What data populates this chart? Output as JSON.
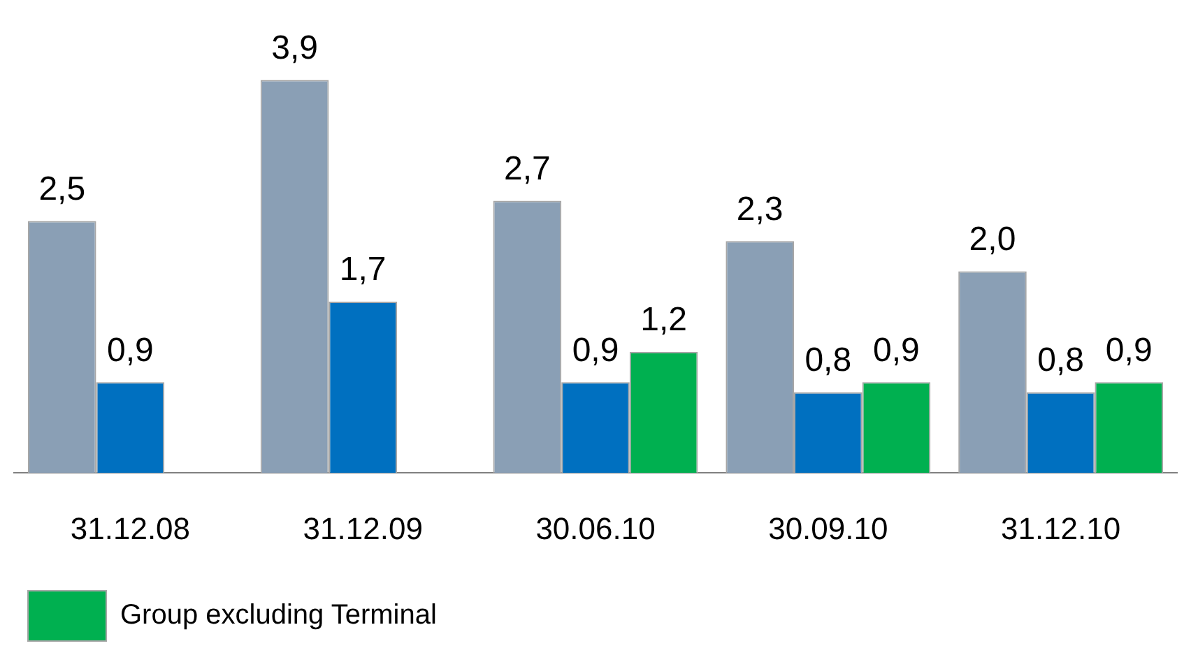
{
  "chart_data": {
    "type": "bar",
    "categories": [
      "31.12.08",
      "31.12.09",
      "30.06.10",
      "30.09.10",
      "31.12.10"
    ],
    "series": [
      {
        "color": "#8a9fb5",
        "values": [
          2.5,
          3.9,
          2.7,
          2.3,
          2.0
        ],
        "value_labels": [
          "2,5",
          "3,9",
          "2,7",
          "2,3",
          "2,0"
        ]
      },
      {
        "color": "#0070c0",
        "values": [
          0.9,
          1.7,
          0.9,
          0.8,
          0.8
        ],
        "value_labels": [
          "0,9",
          "1,7",
          "0,9",
          "0,8",
          "0,8"
        ]
      },
      {
        "name": "Group excluding Terminal",
        "color": "#00b050",
        "values": [
          null,
          null,
          1.2,
          0.9,
          0.9
        ],
        "value_labels": [
          null,
          null,
          "1,2",
          "0,9",
          "0,9"
        ]
      }
    ],
    "tick_labels": "x",
    "grid": false,
    "legend": "bottom"
  }
}
